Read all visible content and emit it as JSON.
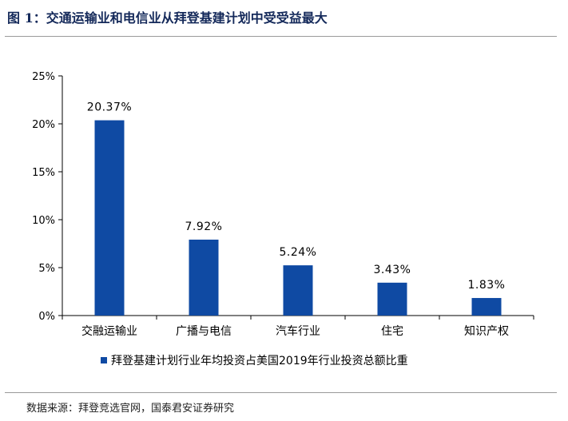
{
  "figure": {
    "title": "图 1：交通运输业和电信业从拜登基建计划中受受益最大",
    "source": "数据来源：拜登竞选官网，国泰君安证券研究"
  },
  "chart_data": {
    "type": "bar",
    "categories": [
      "交融运输业",
      "广播与电信",
      "汽车行业",
      "住宅",
      "知识产权"
    ],
    "series": [
      {
        "name": "拜登基建计划行业年均投资占美国2019年行业投资总额比重",
        "values": [
          20.37,
          7.92,
          5.24,
          3.43,
          1.83
        ],
        "data_labels": [
          "20.37%",
          "7.92%",
          "5.24%",
          "3.43%",
          "1.83%"
        ],
        "color": "#0f4aa3"
      }
    ],
    "yticks": [
      "0%",
      "5%",
      "10%",
      "15%",
      "20%",
      "25%"
    ],
    "ylim": [
      0,
      25
    ],
    "grid": false,
    "legend_position": "bottom"
  }
}
